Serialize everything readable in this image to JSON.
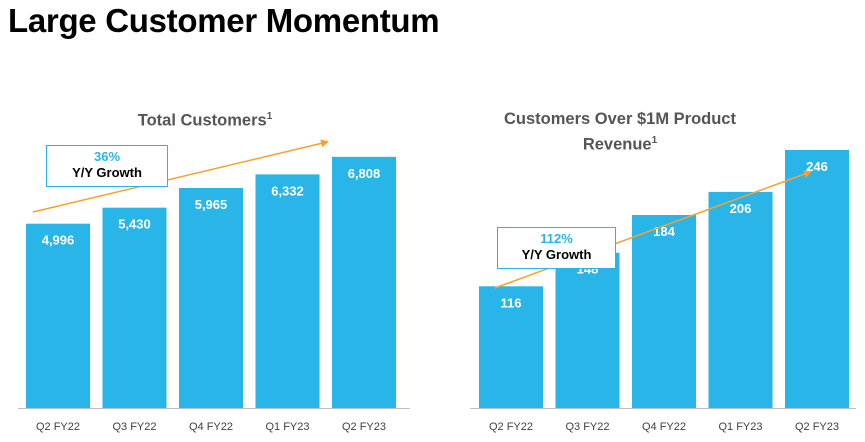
{
  "page": {
    "title": "Large Customer Momentum"
  },
  "colors": {
    "bar": "#29b5e8",
    "trend": "#f7a030",
    "axis": "#bfbfbf",
    "label": "#ffffff",
    "tick": "#404040"
  },
  "chart_data": [
    {
      "type": "bar",
      "title": "Total Customers",
      "title_footnote": "1",
      "categories": [
        "Q2 FY22",
        "Q3 FY22",
        "Q4 FY22",
        "Q1 FY23",
        "Q2 FY23"
      ],
      "values": [
        4996,
        5430,
        5965,
        6332,
        6808
      ],
      "value_labels": [
        "4,996",
        "5,430",
        "5,965",
        "6,332",
        "6,808"
      ],
      "ylim": [
        0,
        7400
      ],
      "xlabel": "",
      "ylabel": "",
      "growth": {
        "value": "36%",
        "label": "Y/Y Growth"
      }
    },
    {
      "type": "bar",
      "title": "Customers Over $1M Product Revenue",
      "title_footnote": "1",
      "categories": [
        "Q2 FY22",
        "Q3 FY22",
        "Q4 FY22",
        "Q1 FY23",
        "Q2 FY23"
      ],
      "values": [
        116,
        148,
        184,
        206,
        246
      ],
      "value_labels": [
        "116",
        "148",
        "184",
        "206",
        "246"
      ],
      "ylim": [
        0,
        265
      ],
      "xlabel": "",
      "ylabel": "",
      "growth": {
        "value": "112%",
        "label": "Y/Y Growth"
      }
    }
  ]
}
